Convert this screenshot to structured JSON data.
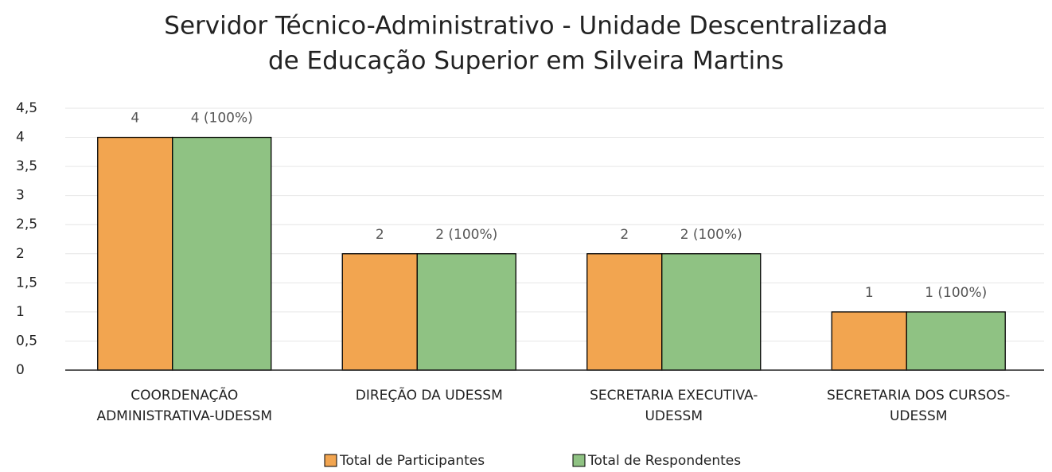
{
  "chart_data": {
    "type": "bar",
    "title": [
      "Servidor Técnico-Administrativo - Unidade Descentralizada",
      "de Educação Superior em Silveira Martins"
    ],
    "categories": [
      [
        "COORDENAÇÃO",
        "ADMINISTRATIVA-UDESSM"
      ],
      [
        "DIREÇÃO DA UDESSM"
      ],
      [
        "SECRETARIA  EXECUTIVA-",
        "UDESSM"
      ],
      [
        "SECRETARIA  DOS CURSOS-",
        "UDESSM"
      ]
    ],
    "series": [
      {
        "name": "Total de Participantes",
        "color": "#f2a550",
        "values": [
          4,
          2,
          2,
          1
        ]
      },
      {
        "name": "Total de Respondentes",
        "color": "#8fc283",
        "values": [
          4,
          2,
          2,
          1
        ],
        "value_labels": [
          "4 (100%)",
          "2 (100%)",
          "2 (100%)",
          "1 (100%)"
        ]
      }
    ],
    "ylim": [
      0,
      4.5
    ],
    "yticks": [
      0,
      {
        "value": 0.5,
        "label": "0,5"
      },
      1,
      {
        "value": 1.5,
        "label": "1,5"
      },
      2,
      {
        "value": 2.5,
        "label": "2,5"
      },
      3,
      {
        "value": 3.5,
        "label": "3,5"
      },
      4,
      {
        "value": 4.5,
        "label": "4,5"
      }
    ],
    "grid": true,
    "legend": "bottom"
  }
}
